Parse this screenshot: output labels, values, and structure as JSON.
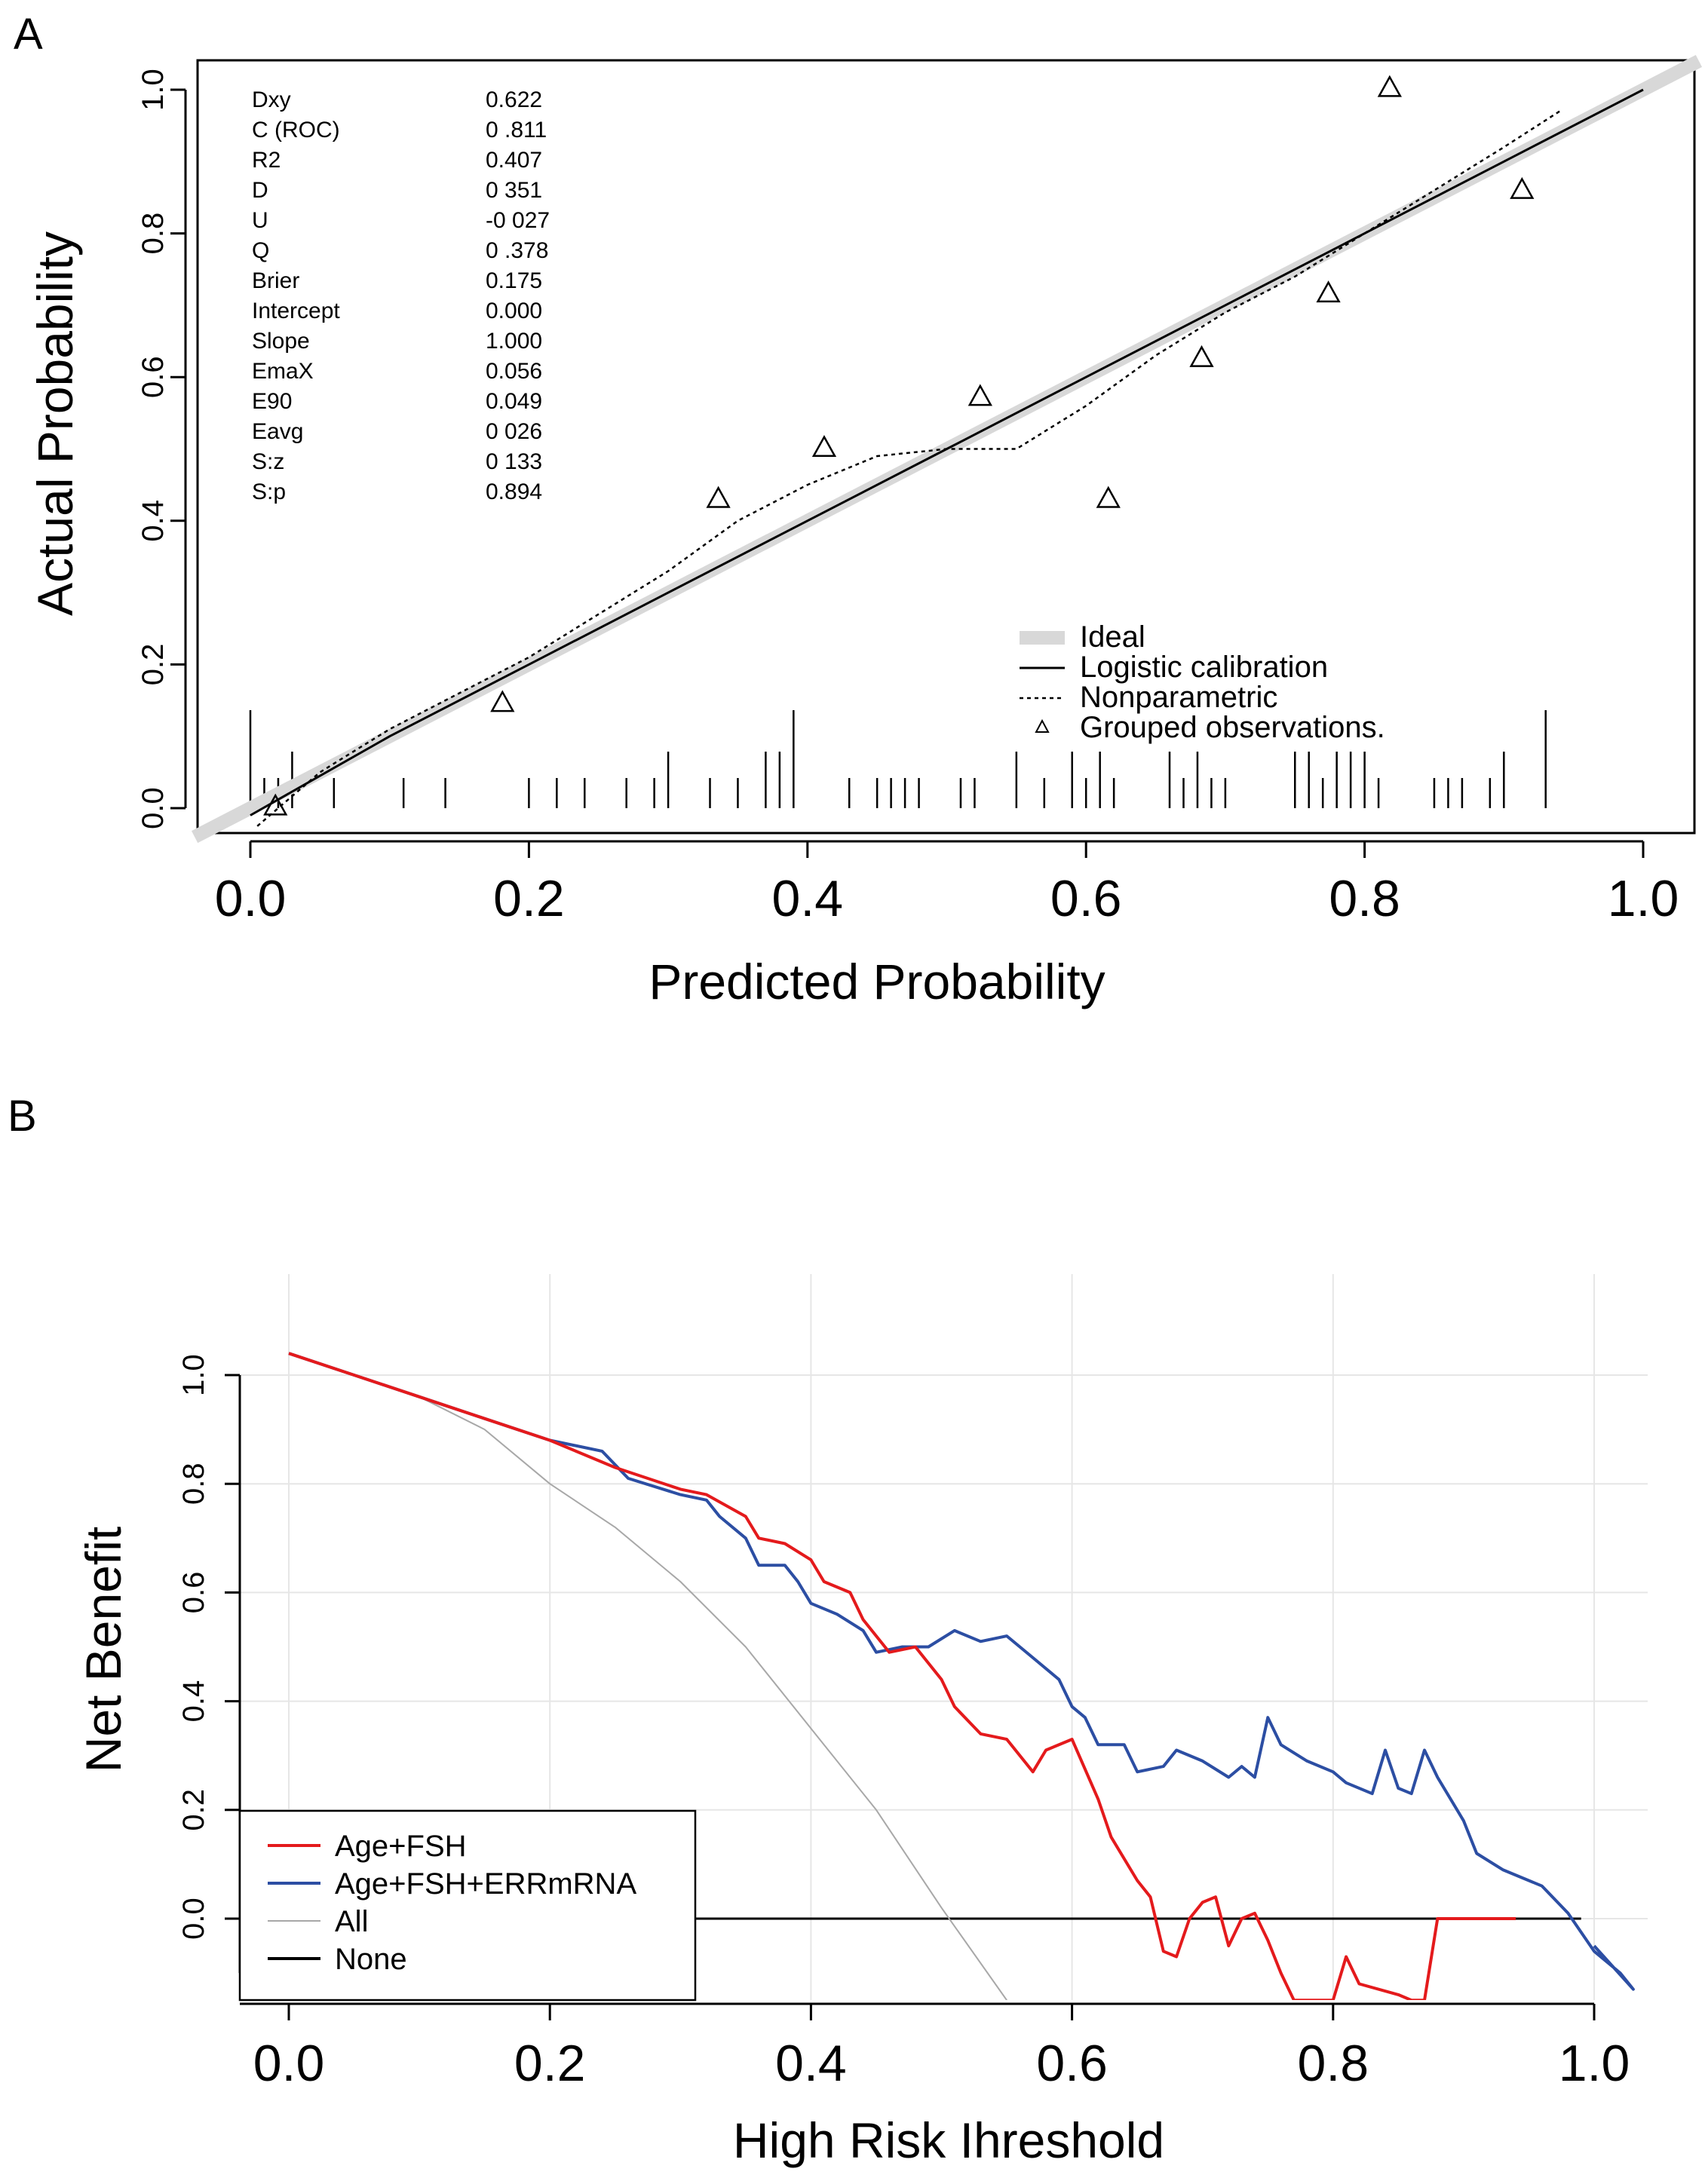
{
  "colors": {
    "red": "#e41a1c",
    "blue": "#2c4ea3",
    "all": "#a8a8a8",
    "ideal": "#d8d8d8",
    "grid": "#e6e6e6"
  },
  "chart_data": [
    {
      "panel_label": "A",
      "type": "scatter",
      "subtype": "calibration",
      "xlabel": "Predicted Probability",
      "ylabel": "Actual Probability",
      "xlim": [
        -0.04,
        1.04
      ],
      "ylim": [
        -0.04,
        1.04
      ],
      "xticks": [
        0.0,
        0.2,
        0.4,
        0.6,
        0.8,
        1.0
      ],
      "xtick_labels": [
        "0.0",
        "0.2",
        "0.4",
        "0.6",
        "0.8",
        "1.0"
      ],
      "yticks": [
        0.0,
        0.2,
        0.4,
        0.6,
        0.8,
        1.0
      ],
      "ytick_labels": [
        "0.0",
        "0.2",
        "0.4",
        "0.6",
        "0.8",
        "1.0"
      ],
      "stats": [
        {
          "name": "Dxy",
          "value": "0.622"
        },
        {
          "name": "C (ROC)",
          "value": "0 .811"
        },
        {
          "name": "R2",
          "value": "0.407"
        },
        {
          "name": "D",
          "value": "0 351"
        },
        {
          "name": "U",
          "value": "-0 027"
        },
        {
          "name": "Q",
          "value": "0 .378"
        },
        {
          "name": "Brier",
          "value": "0.175"
        },
        {
          "name": "Intercept",
          "value": "0.000"
        },
        {
          "name": "Slope",
          "value": "1.000"
        },
        {
          "name": "EmaX",
          "value": "0.056"
        },
        {
          "name": "E90",
          "value": "0.049"
        },
        {
          "name": "Eavg",
          "value": "0 026"
        },
        {
          "name": "S:z",
          "value": "0 133"
        },
        {
          "name": "S:p",
          "value": "0.894"
        }
      ],
      "legend": {
        "placement": "bottom-right",
        "entries": [
          "Ideal",
          "Logistic calibration",
          "Nonparametric",
          "Grouped observations."
        ]
      },
      "ideal": [
        [
          -0.04,
          -0.04
        ],
        [
          1.04,
          1.04
        ]
      ],
      "logistic": [
        [
          0.0,
          -0.01
        ],
        [
          0.1,
          0.1
        ],
        [
          0.2,
          0.2
        ],
        [
          0.3,
          0.3
        ],
        [
          0.4,
          0.4
        ],
        [
          0.5,
          0.5
        ],
        [
          0.6,
          0.6
        ],
        [
          0.7,
          0.7
        ],
        [
          0.8,
          0.8
        ],
        [
          0.9,
          0.9
        ],
        [
          1.0,
          1.0
        ]
      ],
      "nonparametric": [
        [
          0.005,
          -0.025
        ],
        [
          0.02,
          0.0
        ],
        [
          0.05,
          0.05
        ],
        [
          0.1,
          0.11
        ],
        [
          0.15,
          0.16
        ],
        [
          0.2,
          0.21
        ],
        [
          0.25,
          0.27
        ],
        [
          0.3,
          0.33
        ],
        [
          0.35,
          0.4
        ],
        [
          0.4,
          0.45
        ],
        [
          0.45,
          0.49
        ],
        [
          0.5,
          0.5
        ],
        [
          0.55,
          0.5
        ],
        [
          0.6,
          0.56
        ],
        [
          0.65,
          0.63
        ],
        [
          0.7,
          0.69
        ],
        [
          0.75,
          0.74
        ],
        [
          0.8,
          0.8
        ],
        [
          0.85,
          0.86
        ],
        [
          0.9,
          0.92
        ],
        [
          0.94,
          0.97
        ]
      ],
      "grouped_observations": [
        [
          0.018,
          0.003
        ],
        [
          0.181,
          0.147
        ],
        [
          0.336,
          0.431
        ],
        [
          0.412,
          0.502
        ],
        [
          0.524,
          0.573
        ],
        [
          0.616,
          0.431
        ],
        [
          0.683,
          0.627
        ],
        [
          0.774,
          0.717
        ],
        [
          0.818,
          1.003
        ],
        [
          0.913,
          0.861
        ]
      ],
      "rug_long": [
        0.0,
        0.39,
        0.93
      ],
      "rug_medium": [
        0.03,
        0.3,
        0.37,
        0.38,
        0.55,
        0.59,
        0.61,
        0.66,
        0.68,
        0.75,
        0.76,
        0.78,
        0.79,
        0.8,
        0.9
      ],
      "rug_short": [
        0.01,
        0.02,
        0.06,
        0.11,
        0.14,
        0.2,
        0.22,
        0.24,
        0.27,
        0.29,
        0.33,
        0.35,
        0.43,
        0.45,
        0.46,
        0.47,
        0.48,
        0.51,
        0.52,
        0.57,
        0.6,
        0.62,
        0.67,
        0.69,
        0.7,
        0.77,
        0.81,
        0.85,
        0.86,
        0.87,
        0.89
      ]
    },
    {
      "panel_label": "B",
      "type": "line",
      "subtype": "decision curve",
      "xlabel": "High Risk Ihreshold",
      "ylabel": "Net Benefit",
      "xlim": [
        -0.04,
        1.04
      ],
      "ylim": [
        -0.15,
        1.2
      ],
      "xticks": [
        0.0,
        0.2,
        0.4,
        0.6,
        0.8,
        1.0
      ],
      "xtick_labels": [
        "0.0",
        "0.2",
        "0.4",
        "0.6",
        "0.8",
        "1.0"
      ],
      "yticks": [
        0.0,
        0.2,
        0.4,
        0.6,
        0.8,
        1.0
      ],
      "ytick_labels": [
        "0.0",
        "0.2",
        "0.4",
        "0.6",
        "0.8",
        "1.0"
      ],
      "grid": true,
      "legend": {
        "placement": "bottom-left",
        "entries": [
          "Age+FSH",
          "Age+FSH+ERRmRNA",
          "All",
          "None"
        ]
      },
      "series": [
        {
          "name": "Age+FSH",
          "color": "#e41a1c",
          "points": [
            [
              0.0,
              1.04
            ],
            [
              0.05,
              1.0
            ],
            [
              0.1,
              0.96
            ],
            [
              0.15,
              0.92
            ],
            [
              0.2,
              0.88
            ],
            [
              0.25,
              0.83
            ],
            [
              0.3,
              0.79
            ],
            [
              0.32,
              0.78
            ],
            [
              0.35,
              0.74
            ],
            [
              0.36,
              0.7
            ],
            [
              0.38,
              0.69
            ],
            [
              0.4,
              0.66
            ],
            [
              0.41,
              0.62
            ],
            [
              0.43,
              0.6
            ],
            [
              0.44,
              0.55
            ],
            [
              0.46,
              0.49
            ],
            [
              0.48,
              0.5
            ],
            [
              0.5,
              0.44
            ],
            [
              0.51,
              0.39
            ],
            [
              0.53,
              0.34
            ],
            [
              0.55,
              0.33
            ],
            [
              0.57,
              0.27
            ],
            [
              0.58,
              0.31
            ],
            [
              0.6,
              0.33
            ],
            [
              0.62,
              0.22
            ],
            [
              0.63,
              0.15
            ],
            [
              0.65,
              0.07
            ],
            [
              0.66,
              0.04
            ],
            [
              0.67,
              -0.06
            ],
            [
              0.68,
              -0.07
            ],
            [
              0.69,
              0.0
            ],
            [
              0.7,
              0.03
            ],
            [
              0.71,
              0.04
            ],
            [
              0.72,
              -0.05
            ],
            [
              0.73,
              0.0
            ],
            [
              0.74,
              0.01
            ],
            [
              0.75,
              -0.04
            ],
            [
              0.76,
              -0.1
            ],
            [
              0.77,
              -0.15
            ],
            [
              0.8,
              -0.15
            ],
            [
              0.81,
              -0.07
            ],
            [
              0.82,
              -0.12
            ],
            [
              0.85,
              -0.14
            ],
            [
              0.86,
              -0.15
            ],
            [
              0.87,
              -0.15
            ],
            [
              0.88,
              0.0
            ],
            [
              0.94,
              0.0
            ]
          ]
        },
        {
          "name": "Age+FSH+ERRmRNA",
          "color": "#2c4ea3",
          "points": [
            [
              0.0,
              1.04
            ],
            [
              0.05,
              1.0
            ],
            [
              0.1,
              0.96
            ],
            [
              0.15,
              0.92
            ],
            [
              0.2,
              0.88
            ],
            [
              0.24,
              0.86
            ],
            [
              0.26,
              0.81
            ],
            [
              0.3,
              0.78
            ],
            [
              0.32,
              0.77
            ],
            [
              0.33,
              0.74
            ],
            [
              0.35,
              0.7
            ],
            [
              0.36,
              0.65
            ],
            [
              0.38,
              0.65
            ],
            [
              0.39,
              0.62
            ],
            [
              0.4,
              0.58
            ],
            [
              0.42,
              0.56
            ],
            [
              0.44,
              0.53
            ],
            [
              0.45,
              0.49
            ],
            [
              0.47,
              0.5
            ],
            [
              0.49,
              0.5
            ],
            [
              0.51,
              0.53
            ],
            [
              0.53,
              0.51
            ],
            [
              0.55,
              0.52
            ],
            [
              0.57,
              0.48
            ],
            [
              0.59,
              0.44
            ],
            [
              0.6,
              0.39
            ],
            [
              0.61,
              0.37
            ],
            [
              0.62,
              0.32
            ],
            [
              0.64,
              0.32
            ],
            [
              0.65,
              0.27
            ],
            [
              0.67,
              0.28
            ],
            [
              0.68,
              0.31
            ],
            [
              0.7,
              0.29
            ],
            [
              0.72,
              0.26
            ],
            [
              0.73,
              0.28
            ],
            [
              0.74,
              0.26
            ],
            [
              0.75,
              0.37
            ],
            [
              0.76,
              0.32
            ],
            [
              0.78,
              0.29
            ],
            [
              0.8,
              0.27
            ],
            [
              0.81,
              0.25
            ],
            [
              0.83,
              0.23
            ],
            [
              0.84,
              0.31
            ],
            [
              0.85,
              0.24
            ],
            [
              0.86,
              0.23
            ],
            [
              0.87,
              0.31
            ],
            [
              0.88,
              0.26
            ],
            [
              0.9,
              0.18
            ],
            [
              0.91,
              0.12
            ],
            [
              0.93,
              0.09
            ],
            [
              0.96,
              0.06
            ],
            [
              0.98,
              0.01
            ],
            [
              1.0,
              -0.06
            ],
            [
              1.02,
              -0.1
            ],
            [
              1.03,
              -0.13
            ],
            [
              1.0,
              -0.05
            ]
          ]
        },
        {
          "name": "All",
          "color": "#a8a8a8",
          "points": [
            [
              0.0,
              1.04
            ],
            [
              0.05,
              1.0
            ],
            [
              0.1,
              0.96
            ],
            [
              0.15,
              0.9
            ],
            [
              0.2,
              0.8
            ],
            [
              0.25,
              0.72
            ],
            [
              0.3,
              0.62
            ],
            [
              0.35,
              0.5
            ],
            [
              0.4,
              0.35
            ],
            [
              0.45,
              0.2
            ],
            [
              0.5,
              0.02
            ],
            [
              0.55,
              -0.15
            ]
          ]
        },
        {
          "name": "None",
          "color": "#000000",
          "points": [
            [
              0.0,
              0.0
            ],
            [
              0.99,
              0.0
            ]
          ]
        }
      ]
    }
  ]
}
